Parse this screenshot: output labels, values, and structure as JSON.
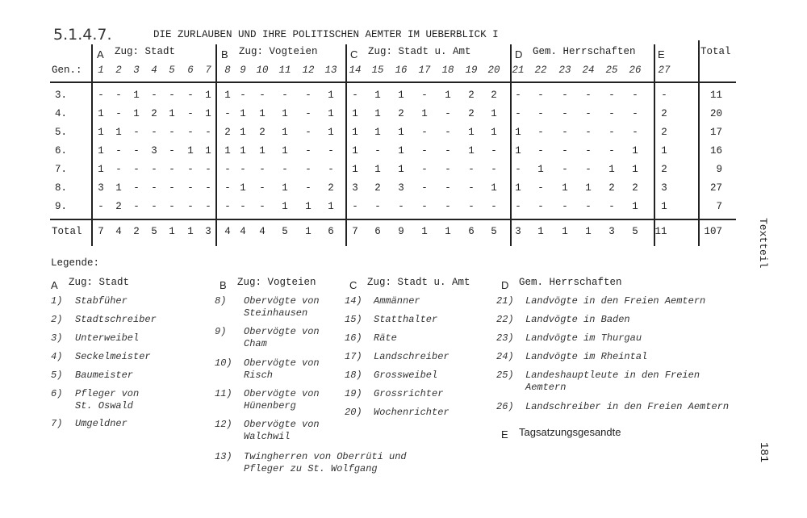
{
  "section_number": "5.1.4.7.",
  "title": "DIE ZURLAUBEN UND IHRE POLITISCHEN AEMTER IM UEBERBLICK I",
  "side_label": "Textteil",
  "page_number": "181",
  "table": {
    "gen_header": "Gen.:",
    "total_header": "Total",
    "groups": [
      {
        "letter": "A",
        "name": "Zug: Stadt"
      },
      {
        "letter": "B",
        "name": "Zug: Vogteien"
      },
      {
        "letter": "C",
        "name": "Zug: Stadt u. Amt"
      },
      {
        "letter": "D",
        "name": "Gem. Herrschaften"
      },
      {
        "letter": "E",
        "name": ""
      }
    ],
    "columns": [
      "1",
      "2",
      "3",
      "4",
      "5",
      "6",
      "7",
      "8",
      "9",
      "10",
      "11",
      "12",
      "13",
      "14",
      "15",
      "16",
      "17",
      "18",
      "19",
      "20",
      "21",
      "22",
      "23",
      "24",
      "25",
      "26",
      "27"
    ],
    "rows": [
      {
        "gen": "3.",
        "values": [
          "-",
          "-",
          "1",
          "-",
          "-",
          "-",
          "1",
          "1",
          "-",
          "-",
          "-",
          "-",
          "1",
          "-",
          "1",
          "1",
          "-",
          "1",
          "2",
          "2",
          "-",
          "-",
          "-",
          "-",
          "-",
          "-",
          "-"
        ],
        "total": "11"
      },
      {
        "gen": "4.",
        "values": [
          "1",
          "-",
          "1",
          "2",
          "1",
          "-",
          "1",
          "-",
          "1",
          "1",
          "1",
          "-",
          "1",
          "1",
          "1",
          "2",
          "1",
          "-",
          "2",
          "1",
          "-",
          "-",
          "-",
          "-",
          "-",
          "-",
          "2"
        ],
        "total": "20"
      },
      {
        "gen": "5.",
        "values": [
          "1",
          "1",
          "-",
          "-",
          "-",
          "-",
          "-",
          "2",
          "1",
          "2",
          "1",
          "-",
          "1",
          "1",
          "1",
          "1",
          "-",
          "-",
          "1",
          "1",
          "1",
          "-",
          "-",
          "-",
          "-",
          "-",
          "2"
        ],
        "total": "17"
      },
      {
        "gen": "6.",
        "values": [
          "1",
          "-",
          "-",
          "3",
          "-",
          "1",
          "1",
          "1",
          "1",
          "1",
          "1",
          "-",
          "-",
          "1",
          "-",
          "1",
          "-",
          "-",
          "1",
          "-",
          "1",
          "-",
          "-",
          "-",
          "-",
          "1",
          "1"
        ],
        "total": "16"
      },
      {
        "gen": "7.",
        "values": [
          "1",
          "-",
          "-",
          "-",
          "-",
          "-",
          "-",
          "-",
          "-",
          "-",
          "-",
          "-",
          "-",
          "1",
          "1",
          "1",
          "-",
          "-",
          "-",
          "-",
          "-",
          "1",
          "-",
          "-",
          "1",
          "1",
          "2"
        ],
        "total": "9"
      },
      {
        "gen": "8.",
        "values": [
          "3",
          "1",
          "-",
          "-",
          "-",
          "-",
          "-",
          "-",
          "1",
          "-",
          "1",
          "-",
          "2",
          "3",
          "2",
          "3",
          "-",
          "-",
          "-",
          "1",
          "1",
          "-",
          "1",
          "1",
          "2",
          "2",
          "3"
        ],
        "total": "27"
      },
      {
        "gen": "9.",
        "values": [
          "-",
          "2",
          "-",
          "-",
          "-",
          "-",
          "-",
          "-",
          "-",
          "-",
          "1",
          "1",
          "1",
          "-",
          "-",
          "-",
          "-",
          "-",
          "-",
          "-",
          "-",
          "-",
          "-",
          "-",
          "-",
          "1",
          "1"
        ],
        "total": "7"
      }
    ],
    "total_row": {
      "label": "Total",
      "values": [
        "7",
        "4",
        "2",
        "5",
        "1",
        "1",
        "3",
        "4",
        "4",
        "4",
        "5",
        "1",
        "6",
        "7",
        "6",
        "9",
        "1",
        "1",
        "6",
        "5",
        "3",
        "1",
        "1",
        "1",
        "3",
        "5",
        "11"
      ],
      "total": "107"
    }
  },
  "legend": {
    "title": "Legende:",
    "groups": [
      {
        "letter": "A",
        "name": "Zug: Stadt",
        "items": [
          {
            "num": "1)",
            "lines": [
              "Stabfüher"
            ]
          },
          {
            "num": "2)",
            "lines": [
              "Stadtschreiber"
            ]
          },
          {
            "num": "3)",
            "lines": [
              "Unterweibel"
            ]
          },
          {
            "num": "4)",
            "lines": [
              "Seckelmeister"
            ]
          },
          {
            "num": "5)",
            "lines": [
              "Baumeister"
            ]
          },
          {
            "num": "6)",
            "lines": [
              "Pfleger von",
              "St. Oswald"
            ]
          },
          {
            "num": "7)",
            "lines": [
              "Umgeldner"
            ]
          }
        ]
      },
      {
        "letter": "B",
        "name": "Zug: Vogteien",
        "items": [
          {
            "num": "8)",
            "lines": [
              "Obervögte  von",
              "Steinhausen"
            ]
          },
          {
            "num": "9)",
            "lines": [
              "Obervögte von",
              "Cham"
            ]
          },
          {
            "num": "10)",
            "lines": [
              "Obervögte von",
              "Risch"
            ]
          },
          {
            "num": "11)",
            "lines": [
              "Obervögte von",
              "Hünenberg"
            ]
          },
          {
            "num": "12)",
            "lines": [
              "Obervögte von",
              "Walchwil"
            ]
          },
          {
            "num": "13)",
            "lines": [
              "Twingherren von Oberrüti und",
              "Pfleger zu St. Wolfgang"
            ]
          }
        ]
      },
      {
        "letter": "C",
        "name": "Zug: Stadt u. Amt",
        "items": [
          {
            "num": "14)",
            "lines": [
              "Ammänner"
            ]
          },
          {
            "num": "15)",
            "lines": [
              "Statthalter"
            ]
          },
          {
            "num": "16)",
            "lines": [
              "Räte"
            ]
          },
          {
            "num": "17)",
            "lines": [
              "Landschreiber"
            ]
          },
          {
            "num": "18)",
            "lines": [
              "Grossweibel"
            ]
          },
          {
            "num": "19)",
            "lines": [
              "Grossrichter"
            ]
          },
          {
            "num": "20)",
            "lines": [
              "Wochenrichter"
            ]
          }
        ]
      },
      {
        "letter": "D",
        "name": "Gem. Herrschaften",
        "items": [
          {
            "num": "21)",
            "lines": [
              "Landvögte in den Freien Aemtern"
            ]
          },
          {
            "num": "22)",
            "lines": [
              "Landvögte in Baden"
            ]
          },
          {
            "num": "23)",
            "lines": [
              "Landvögte im Thurgau"
            ]
          },
          {
            "num": "24)",
            "lines": [
              "Landvögte im Rheintal"
            ]
          },
          {
            "num": "25)",
            "lines": [
              "Landeshauptleute in den Freien",
              "Aemtern"
            ]
          },
          {
            "num": "26)",
            "lines": [
              "Landschreiber in den Freien Aemtern"
            ]
          }
        ]
      },
      {
        "letter": "E",
        "name": "Tagsatzungsgesandte",
        "items": []
      }
    ]
  }
}
